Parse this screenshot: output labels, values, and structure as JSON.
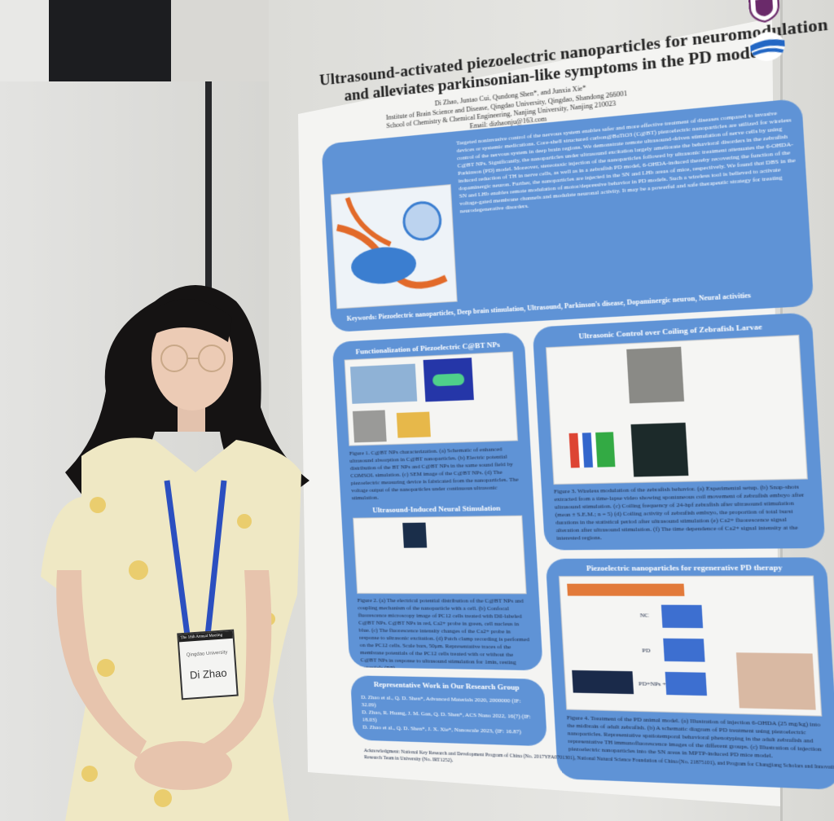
{
  "poster": {
    "title_line1": "Ultrasound-activated piezoelectric nanoparticles for neuromodulation",
    "title_line2": "and alleviates parkinsonian-like symptoms in the PD model",
    "authors": "Di Zhao, Juntao Cui, Qundong Shen*, and Junxia Xie*",
    "affiliation1": "Institute of Brain Science and Disease, Qingdao University, Qingdao, Shandong 266001",
    "affiliation2": "School of Chemistry & Chemical Engineering, Nanjing University, Nanjing 210023",
    "email": "Email: dizhaonju@163.com",
    "abstract": "Targeted noninvasive control of the nervous system enables safer and more effective treatment of diseases compared to invasive devices or systemic medications. Core-shell structured carbon@BaTiO3 (C@BT) piezoelectric nanoparticles are utilized for wireless control of the nervous system in deep brain regions. We demonstrate remote ultrasound-driven stimulation of nerve cells by using C@BT NPs. Significantly, the nanoparticles under ultrasound excitation largely ameliorate the behavioral disorders in the zebrafish Parkinson (PD) model. Moreover, stereotaxic injection of the nanoparticles followed by ultrasonic treatment attenuates the 6-OHDA-induced reduction of TH in nerve cells, as well as in a zebrafish PD model, 6-OHDA-induced thereby recovering the function of the dopaminergic neuron. Further, the nanoparticles are injected in the SN and LHb areas of mice, respectively. We found that DBS in the SN and LHb enables remote modulation of motor/depressive behavior in PD models. Such a wireless tool is believed to activate voltage-gated membrane channels and modulate neuronal activity. It may be a powerful and safe therapeutic strategy for treating neurodegenerative disorders.",
    "keywords": "Keywords: Piezoelectric nanoparticles, Deep brain stimulation, Ultrasound, Parkinson's disease, Dopaminergic neuron, Neural activities",
    "sections": {
      "functionalization": {
        "heading": "Functionalization of Piezoelectric C@BT NPs",
        "caption": "Figure 1. C@BT NPs characterization. (a) Schematic of enhanced ultrasound absorption in C@BT nanoparticles. (b) Electric potential distribution of the BT NPs and C@BT NPs in the same sound field by COMSOL simulation. (c) SEM image of the C@BT NPs. (d) The piezoelectric measuring device is fabricated from the nanoparticles. The voltage output of the nanoparticles under continuous ultrasonic stimulation."
      },
      "neural": {
        "heading": "Ultrasound-Induced Neural Stimulation",
        "caption": "Figure 2. (a) The electrical potential distribution of the C@BT NPs and coupling mechanism of the nanoparticle with a cell. (b) Confocal fluorescence microscopy image of PC12 cells treated with DiI-labeled C@BT NPs. C@BT NPs in red, Ca2+ probe in green, cell nucleus in blue. (c) The fluorescence intensity changes of the Ca2+ probe in response to ultrasonic excitation. (d) Patch clamp recording is performed on the PC12 cells. Scale bars, 50μm. Representative traces of the membrane potentials of the PC12 cells treated with or without the C@BT NPs in response to ultrasound stimulation for 1min, resting potentials (RP)."
      },
      "zebrafish": {
        "heading": "Ultrasonic Control over Coiling of Zebrafish Larvae",
        "caption": "Figure 3. Wireless modulation of the zebrafish behavior. (a) Experimental setup. (b) Snap-shots extracted from a time-lapse video showing spontaneous coil movement of zebrafish embryo after ultrasound stimulation. (c) Coiling frequency of 24-hpf zebrafish after ultrasound stimulation (mean ± S.E.M.; n = 5) (d) Coiling activity of zebrafish embryo, the proportion of total burst durations in the statistical period after ultrasound stimulation (e) Ca2+ fluorescence signal alteration after ultrasound stimulation. (f) The time dependence of Ca2+ signal intensity at the interested regions."
      },
      "pd_therapy": {
        "heading": "Piezoelectric nanoparticles for regenerative PD therapy",
        "caption": "Figure 4. Treatment of the PD animal model. (a) Illustration of injection 6-OHDA (25 mg/kg) into the midbrain of adult zebrafish. (b) A schematic diagram of PD treatment using piezoelectric nanoparticles. Representative spatiotemporal behavioral phenotyping in the adult zebrafish and representative TH immunofluorescence images of the different groups. (c) Illustration of injection piezoelectric nanoparticles into the SN areas in MPTP-induced PD mice model.",
        "labels": [
          "NC",
          "PD",
          "PD+NPs +US"
        ]
      },
      "works": {
        "heading": "Representative Work in Our Research Group",
        "items": [
          "D. Zhao et al., Q. D. Shen*, Advanced Materials 2020, 2000000 (IF: 32.09)",
          "D. Zhao, R. Huang, J. M. Gan, Q. D. Shen*, ACS Nano 2022, 16(7) (IF: 18.03)",
          "D. Zhao et al., Q. D. Shen*, J. X. Xie*, Nanoscale 2023, (IF: 16.87)"
        ]
      }
    },
    "acknowledgment": "Acknowledgment: National Key Research and Development Program of China (No. 2017YFA0701301), National Natural Science Foundation of China (No. 21875101), and Program for Changjiang Scholars and Innovative Research Team in University (No. IRT1252)."
  },
  "badge": {
    "header": "The 18th Annual Meeting",
    "org": "Qingdao University",
    "name": "Di Zhao"
  },
  "colors": {
    "panel_blue": "#5f93d6",
    "panel_light": "#d7e5f6",
    "dress": "#efe8c4",
    "lanyard": "#2b4fc0",
    "hair": "#151313"
  }
}
